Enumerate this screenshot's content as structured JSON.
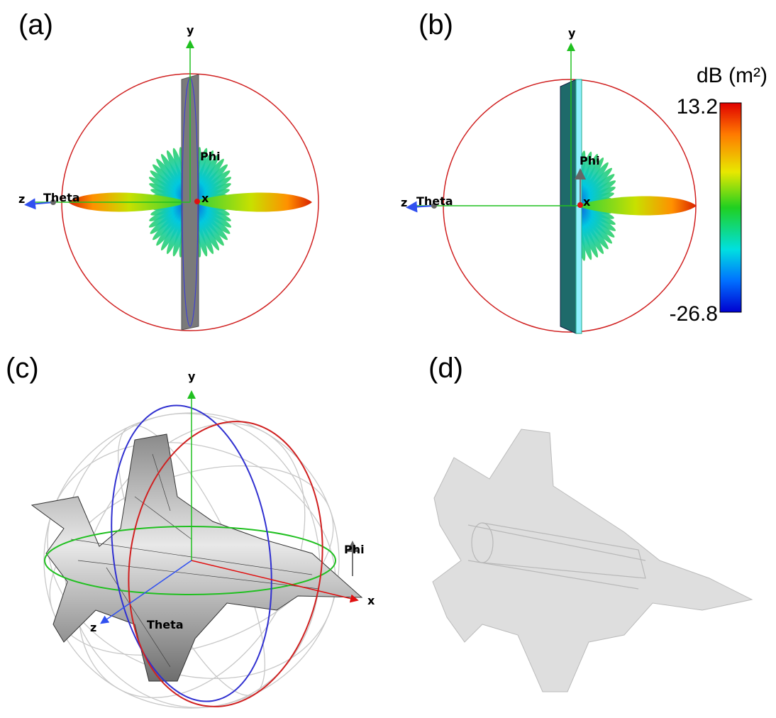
{
  "panels": [
    {
      "label": "(a)",
      "axis_y": "y",
      "axis_z": "z",
      "axis_x": "x",
      "theta": "Theta",
      "phi": "Phi"
    },
    {
      "label": "(b)",
      "axis_y": "y",
      "axis_z": "z",
      "axis_x": "x",
      "theta": "Theta",
      "phi": "Phi"
    },
    {
      "label": "(c)",
      "axis_y": "y",
      "axis_z": "z",
      "axis_x": "x",
      "theta": "Theta",
      "phi": "Phi"
    },
    {
      "label": "(d)"
    }
  ],
  "colorbar": {
    "title": "dB (m²)",
    "max": 13.2,
    "min": -26.8
  }
}
